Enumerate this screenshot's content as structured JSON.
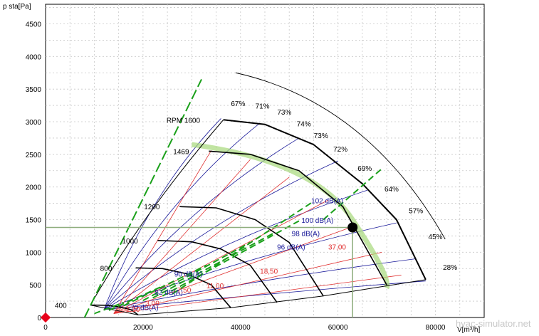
{
  "chart_data": {
    "type": "line",
    "ylabel": "p sta[Pa]",
    "xlabel": "V[m³/h]",
    "xlim": [
      0,
      90000
    ],
    "ylim": [
      0,
      4800
    ],
    "x_ticks": [
      0,
      20000,
      40000,
      60000,
      80000
    ],
    "y_ticks": [
      0,
      500,
      1000,
      1500,
      2000,
      2500,
      3000,
      3500,
      4000,
      4500
    ],
    "grid": true,
    "legend": "none",
    "rpm_curves": [
      {
        "name": "RPM 1600",
        "points": [
          [
            36500,
            3030
          ],
          [
            45000,
            2960
          ],
          [
            55000,
            2650
          ],
          [
            65000,
            2050
          ],
          [
            72000,
            1500
          ],
          [
            78000,
            580
          ]
        ]
      },
      {
        "name": "1469",
        "points": [
          [
            33500,
            2550
          ],
          [
            42000,
            2500
          ],
          [
            52000,
            2250
          ],
          [
            61000,
            1700
          ],
          [
            70000,
            500
          ]
        ]
      },
      {
        "name": "1200",
        "points": [
          [
            27500,
            1700
          ],
          [
            35000,
            1680
          ],
          [
            43000,
            1500
          ],
          [
            50000,
            1150
          ],
          [
            57000,
            330
          ]
        ]
      },
      {
        "name": "1000",
        "points": [
          [
            23000,
            1180
          ],
          [
            30000,
            1160
          ],
          [
            36000,
            1050
          ],
          [
            42000,
            800
          ],
          [
            47500,
            230
          ]
        ]
      },
      {
        "name": "800",
        "points": [
          [
            18500,
            760
          ],
          [
            24000,
            750
          ],
          [
            29000,
            670
          ],
          [
            34000,
            500
          ],
          [
            38000,
            150
          ]
        ]
      },
      {
        "name": "400",
        "points": [
          [
            9200,
            190
          ],
          [
            12500,
            188
          ],
          [
            15000,
            165
          ],
          [
            17500,
            120
          ],
          [
            19000,
            40
          ]
        ]
      }
    ],
    "efficiency_labels": [
      "67%",
      "71%",
      "73%",
      "74%",
      "73%",
      "72%",
      "69%",
      "64%",
      "57%",
      "45%",
      "28%"
    ],
    "noise_labels": [
      "70 dB(A)",
      "82 dB(A)",
      "90 dB(A)",
      "96 dB(A)",
      "98 dB(A)",
      "100 dB(A)",
      "102 dB(A)"
    ],
    "power_labels": [
      "1,10",
      "3,00",
      "7,50",
      "11,00",
      "18,50",
      "37,00"
    ],
    "operating_point": {
      "x": 63000,
      "y": 1380
    },
    "colors": {
      "rpm": "#000000",
      "efficiency": "#1a1a9a",
      "power": "#e03030",
      "noise": "#1aa01a",
      "highlight": "#a6d97a",
      "marker": "#e8001a"
    }
  },
  "watermark": "hvac-simulator.net"
}
